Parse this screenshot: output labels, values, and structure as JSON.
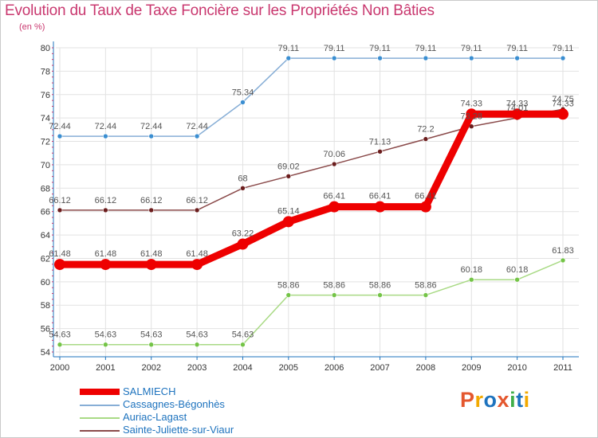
{
  "title": "Evolution du Taux de Taxe Foncière sur les Propriétés Non Bâties",
  "unit_label": "(en %)",
  "logo": "Proxiti",
  "logo_colors": [
    "#e4572e",
    "#f2a900",
    "#1e73be",
    "#e4572e",
    "#3fae49",
    "#1e73be",
    "#f2a900"
  ],
  "colors": {
    "title": "#c9386f",
    "axis": "#1e73be",
    "grid": "#e2e2e2",
    "label": "#555555",
    "legend_text": "#1e73be"
  },
  "chart_data": {
    "type": "line",
    "title": "Evolution du Taux de Taxe Foncière sur les Propriétés Non Bâties",
    "xlabel": "",
    "ylabel": "(en %)",
    "x": [
      "2000",
      "2001",
      "2002",
      "2003",
      "2004",
      "2005",
      "2006",
      "2007",
      "2008",
      "2009",
      "2010",
      "2011"
    ],
    "ylim": [
      54,
      80
    ],
    "yticks": [
      54,
      56,
      58,
      60,
      62,
      64,
      66,
      68,
      70,
      72,
      74,
      76,
      78,
      80
    ],
    "grid": true,
    "legend_position": "bottom-left",
    "series": [
      {
        "name": "Cassagnes-Bégonhès",
        "color": "#87aed6",
        "point_color": "#3a8ed1",
        "width": 1.5,
        "values": [
          72.44,
          72.44,
          72.44,
          72.44,
          75.34,
          79.11,
          79.11,
          79.11,
          79.11,
          79.11,
          79.11,
          79.11
        ],
        "labels": [
          "72.44",
          "72.44",
          "72.44",
          "72.44",
          "75.34",
          "79.11",
          "79.11",
          "79.11",
          "79.11",
          "79.11",
          "79.11",
          "79.11"
        ]
      },
      {
        "name": "Auriac-Lagast",
        "color": "#a9da85",
        "point_color": "#74c447",
        "width": 1.5,
        "values": [
          54.63,
          54.63,
          54.63,
          54.63,
          54.63,
          58.86,
          58.86,
          58.86,
          58.86,
          60.18,
          60.18,
          61.83
        ],
        "labels": [
          "54.63",
          "54.63",
          "54.63",
          "54.63",
          "54.63",
          "58.86",
          "58.86",
          "58.86",
          "58.86",
          "60.18",
          "60.18",
          "61.83"
        ]
      },
      {
        "name": "Sainte-Juliette-sur-Viaur",
        "color": "#8a4a4a",
        "point_color": "#6b1d1d",
        "width": 1.5,
        "values": [
          66.12,
          66.12,
          66.12,
          66.12,
          68,
          69.02,
          70.06,
          71.13,
          72.2,
          73.28,
          74.01,
          74.75
        ],
        "labels": [
          "66.12",
          "66.12",
          "66.12",
          "66.12",
          "68",
          "69.02",
          "70.06",
          "71.13",
          "72.2",
          "73.28",
          "74.01",
          "74.75"
        ]
      },
      {
        "name": "SALMIECH",
        "color": "#ee0000",
        "point_color": "#ee0000",
        "width": 9,
        "values": [
          61.48,
          61.48,
          61.48,
          61.48,
          63.22,
          65.14,
          66.41,
          66.41,
          66.41,
          74.33,
          74.33,
          74.33
        ],
        "labels": [
          "61.48",
          "61.48",
          "61.48",
          "61.48",
          "63.22",
          "65.14",
          "66.41",
          "66.41",
          "66.41",
          "74.33",
          "74.33",
          "74.33"
        ]
      }
    ],
    "legend": [
      "SALMIECH",
      "Cassagnes-Bégonhès",
      "Auriac-Lagast",
      "Sainte-Juliette-sur-Viaur"
    ]
  }
}
